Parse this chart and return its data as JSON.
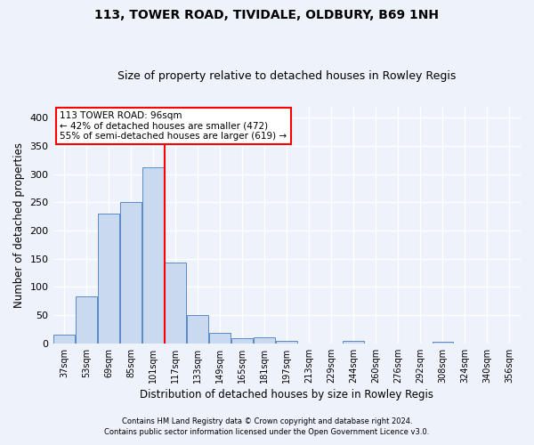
{
  "title1": "113, TOWER ROAD, TIVIDALE, OLDBURY, B69 1NH",
  "title2": "Size of property relative to detached houses in Rowley Regis",
  "xlabel": "Distribution of detached houses by size in Rowley Regis",
  "ylabel": "Number of detached properties",
  "footnote1": "Contains HM Land Registry data © Crown copyright and database right 2024.",
  "footnote2": "Contains public sector information licensed under the Open Government Licence v3.0.",
  "categories": [
    "37sqm",
    "53sqm",
    "69sqm",
    "85sqm",
    "101sqm",
    "117sqm",
    "133sqm",
    "149sqm",
    "165sqm",
    "181sqm",
    "197sqm",
    "213sqm",
    "229sqm",
    "244sqm",
    "260sqm",
    "276sqm",
    "292sqm",
    "308sqm",
    "324sqm",
    "340sqm",
    "356sqm"
  ],
  "values": [
    15,
    83,
    230,
    250,
    312,
    144,
    50,
    19,
    9,
    10,
    5,
    0,
    0,
    4,
    0,
    0,
    0,
    3,
    0,
    0,
    0
  ],
  "bar_color": "#c9d9f0",
  "bar_edge_color": "#5a8ac6",
  "red_line_x": 4.5,
  "red_line_label": "113 TOWER ROAD: 96sqm",
  "annotation_line1": "← 42% of detached houses are smaller (472)",
  "annotation_line2": "55% of semi-detached houses are larger (619) →",
  "ylim": [
    0,
    420
  ],
  "yticks": [
    0,
    50,
    100,
    150,
    200,
    250,
    300,
    350,
    400
  ],
  "background_color": "#edf2fb",
  "grid_color": "#ffffff",
  "title1_fontsize": 10,
  "title2_fontsize": 9,
  "xlabel_fontsize": 8.5,
  "ylabel_fontsize": 8.5,
  "footnote_fontsize": 6.0,
  "annotation_fontsize": 7.5
}
